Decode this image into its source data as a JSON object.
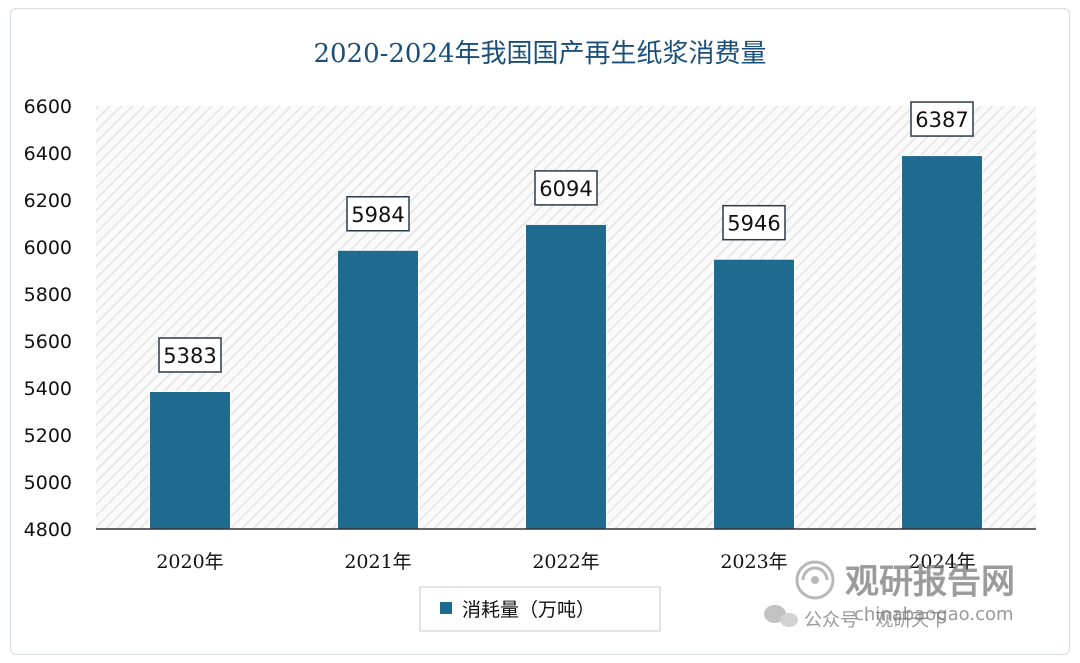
{
  "chart_data": {
    "type": "bar",
    "title": "2020-2024年我国国产再生纸浆消费量",
    "categories": [
      "2020年",
      "2021年",
      "2022年",
      "2023年",
      "2024年"
    ],
    "series": [
      {
        "name": "消耗量（万吨）",
        "values": [
          5383,
          5984,
          6094,
          5946,
          6387
        ]
      }
    ],
    "ylim": [
      4800,
      6600
    ],
    "yticks": [
      4800,
      5000,
      5200,
      5400,
      5600,
      5800,
      6000,
      6200,
      6400,
      6600
    ],
    "xlabel": "",
    "ylabel": "",
    "grid": false,
    "legend_position": "bottom-center",
    "colors": {
      "bar": "#1f6a8f",
      "title": "#1a4f7a",
      "hatch": "#e6e6e6"
    }
  },
  "watermark": {
    "brand": "观研报告网",
    "url": "chinabaogao.com",
    "account": "公众号 · 观研天下"
  }
}
